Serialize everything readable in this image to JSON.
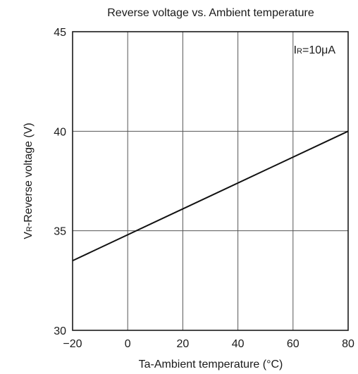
{
  "chart_data": {
    "type": "line",
    "title": "Reverse voltage vs. Ambient temperature",
    "xlabel": "Ta-Ambient temperature (°C)",
    "ylabel_main": "V",
    "ylabel_sub": "R",
    "ylabel_rest": "-Reverse voltage (V)",
    "annotation_main": "I",
    "annotation_sub": "R",
    "annotation_rest": "=10μA",
    "xlim": [
      -20,
      80
    ],
    "ylim": [
      30,
      45
    ],
    "xticks": [
      -20,
      0,
      20,
      40,
      60,
      80
    ],
    "xtick_labels": [
      "−20",
      "0",
      "20",
      "40",
      "60",
      "80"
    ],
    "yticks": [
      30,
      35,
      40,
      45
    ],
    "ytick_labels": [
      "30",
      "35",
      "40",
      "45"
    ],
    "grid": true,
    "series": [
      {
        "x": [
          -20,
          80
        ],
        "y": [
          33.5,
          40.0
        ]
      }
    ]
  }
}
